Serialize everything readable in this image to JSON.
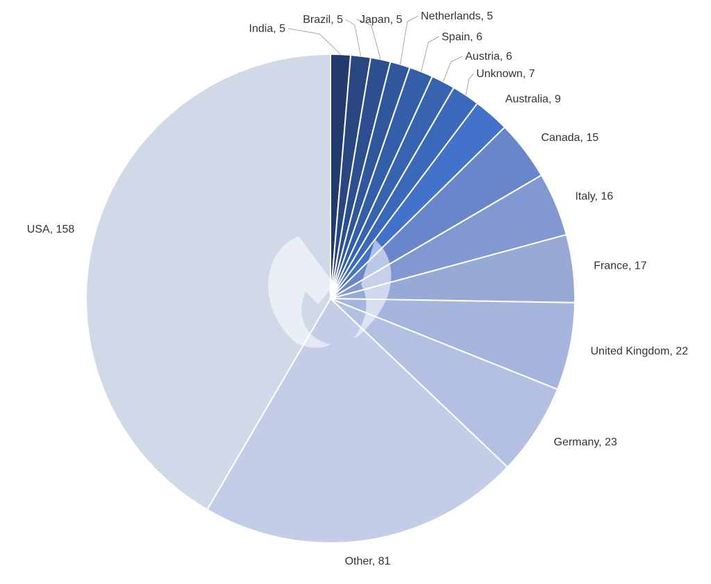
{
  "chart_data": {
    "type": "pie",
    "title": "",
    "slices": [
      {
        "label": "India",
        "value": 5,
        "color": "#223a6e"
      },
      {
        "label": "Brazil",
        "value": 5,
        "color": "#2a4680"
      },
      {
        "label": "Japan",
        "value": 5,
        "color": "#2e4f8f"
      },
      {
        "label": "Netherlands",
        "value": 5,
        "color": "#30569c"
      },
      {
        "label": "Spain",
        "value": 6,
        "color": "#335ea8"
      },
      {
        "label": "Austria",
        "value": 6,
        "color": "#3763b1"
      },
      {
        "label": "Unknown",
        "value": 7,
        "color": "#3a68ba"
      },
      {
        "label": "Australia",
        "value": 9,
        "color": "#4272c9"
      },
      {
        "label": "Canada",
        "value": 15,
        "color": "#6a86cb"
      },
      {
        "label": "Italy",
        "value": 16,
        "color": "#8198d0"
      },
      {
        "label": "France",
        "value": 17,
        "color": "#97a9d7"
      },
      {
        "label": "United Kingdom",
        "value": 22,
        "color": "#a6b5de"
      },
      {
        "label": "Germany",
        "value": 23,
        "color": "#b3c0e2"
      },
      {
        "label": "Other",
        "value": 81,
        "color": "#c3cde8"
      },
      {
        "label": "USA",
        "value": 158,
        "color": "#d0d9e8"
      }
    ],
    "data_labels": "category, value",
    "start_angle": "12 o'clock",
    "direction": "clockwise"
  }
}
